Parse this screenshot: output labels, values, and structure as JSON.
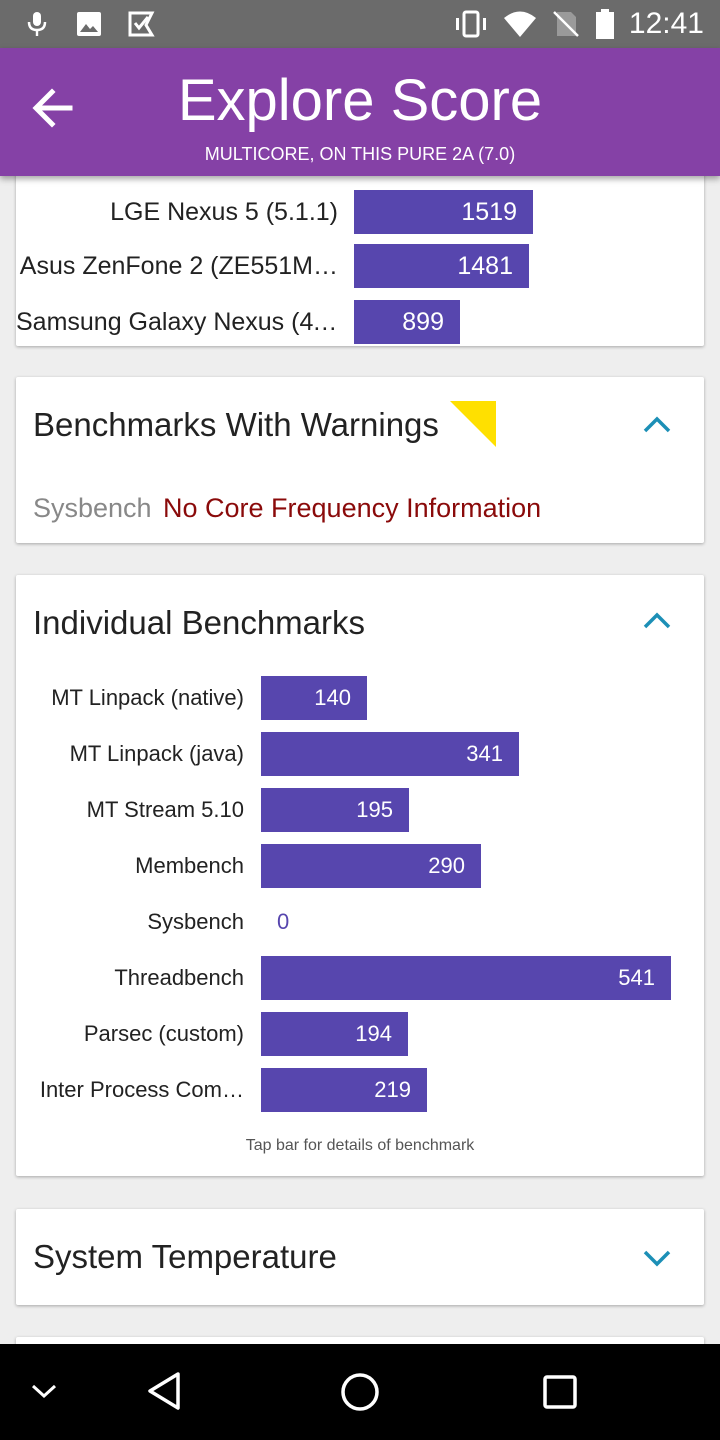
{
  "status_bar": {
    "time": "12:41",
    "left_icons": [
      "mic-icon",
      "image-icon",
      "play-store-icon"
    ],
    "right_icons": [
      "vibrate-icon",
      "wifi-icon",
      "no-sim-icon",
      "battery-icon"
    ]
  },
  "app_bar": {
    "title": "Explore Score",
    "subtitle": "MULTICORE, ON THIS PURE 2A (7.0)",
    "back_icon": "back-arrow-icon"
  },
  "device_comparison": {
    "rows": [
      {
        "label": "LGE Nexus 5 (5.1.1)",
        "value": 1519
      },
      {
        "label": "Asus ZenFone 2 (ZE551M…",
        "value": 1481
      },
      {
        "label": "Samsung Galaxy Nexus (4.…",
        "value": 899
      }
    ]
  },
  "warnings": {
    "title": "Benchmarks With Warnings",
    "benchmark": "Sysbench",
    "message": "No Core Frequency Information",
    "flag_color": "#ffe000",
    "expanded": true
  },
  "individual": {
    "title": "Individual Benchmarks",
    "expanded": true,
    "hint": "Tap bar for details of benchmark",
    "rows": [
      {
        "label": "MT Linpack (native)",
        "value": 140
      },
      {
        "label": "MT Linpack (java)",
        "value": 341
      },
      {
        "label": "MT Stream 5.10",
        "value": 195
      },
      {
        "label": "Membench",
        "value": 290
      },
      {
        "label": "Sysbench",
        "value": 0
      },
      {
        "label": "Threadbench",
        "value": 541
      },
      {
        "label": "Parsec (custom)",
        "value": 194
      },
      {
        "label": "Inter Process Com…",
        "value": 219
      }
    ]
  },
  "temperature": {
    "title": "System Temperature",
    "expanded": false
  },
  "colors": {
    "accent": "#8541a6",
    "bar": "#5746ae",
    "chevron": "#1c8fb6"
  },
  "nav_bar": {
    "icons": [
      "chevron-down-icon",
      "back-triangle-icon",
      "home-circle-icon",
      "recents-square-icon"
    ]
  }
}
